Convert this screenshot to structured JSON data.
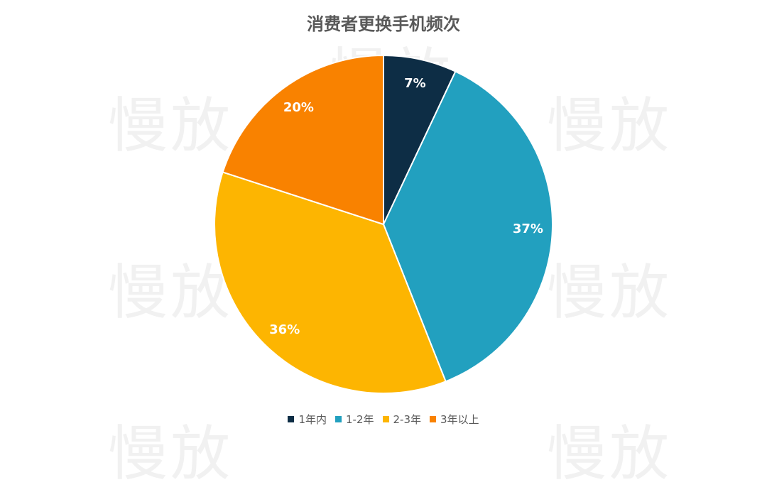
{
  "watermark": "慢放",
  "chart_data": {
    "type": "pie",
    "title": "消费者更换手机频次",
    "categories": [
      "1年内",
      "1-2年",
      "2-3年",
      "3年以上"
    ],
    "values": [
      7,
      37,
      36,
      20
    ],
    "labels": [
      "7%",
      "37%",
      "36%",
      "20%"
    ],
    "colors": [
      "#0d2d45",
      "#22a0bf",
      "#fdb501",
      "#f98200"
    ],
    "legend_position": "bottom"
  }
}
